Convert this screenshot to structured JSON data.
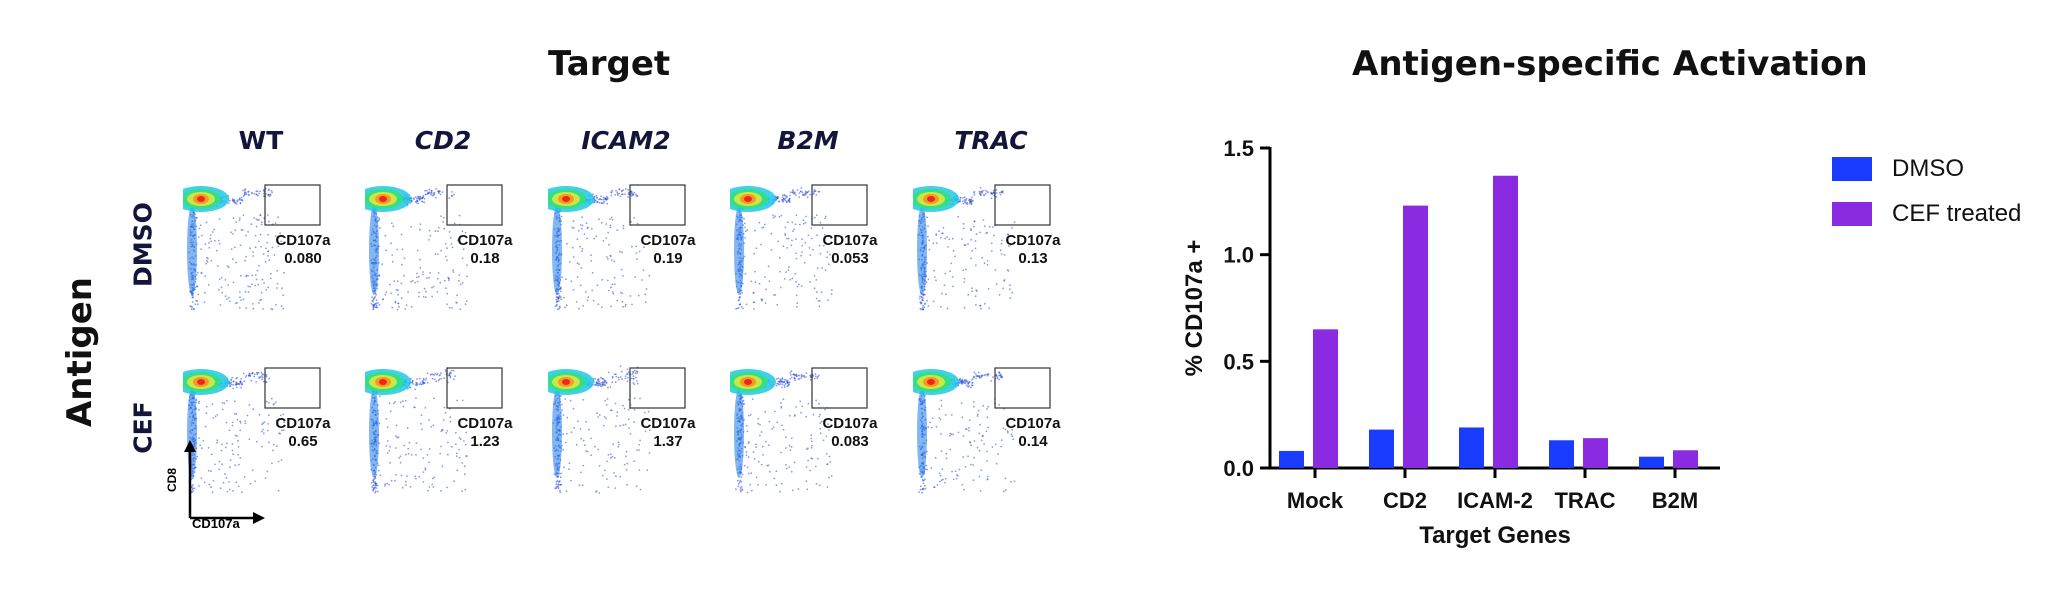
{
  "left_figure": {
    "title": "Target",
    "side_label": "Antigen",
    "columns": [
      {
        "label": "WT",
        "italic": false
      },
      {
        "label": "CD2",
        "italic": true
      },
      {
        "label": "ICAM2",
        "italic": true
      },
      {
        "label": "B2M",
        "italic": true
      },
      {
        "label": "TRAC",
        "italic": true
      }
    ],
    "rows": [
      {
        "label": "DMSO",
        "gate_name": "CD107a",
        "values": [
          "0.080",
          "0.18",
          "0.19",
          "0.053",
          "0.13"
        ]
      },
      {
        "label": "CEF",
        "gate_name": "CD107a",
        "values": [
          "0.65",
          "1.23",
          "1.37",
          "0.083",
          "0.14"
        ]
      }
    ],
    "axis_y_label": "CD8",
    "axis_x_label": "CD107a"
  },
  "chart_data": {
    "type": "bar",
    "title": "Antigen-specific Activation",
    "xlabel": "Target Genes",
    "ylabel": "% CD107a +",
    "categories": [
      "Mock",
      "CD2",
      "ICAM-2",
      "TRAC",
      "B2M"
    ],
    "series": [
      {
        "name": "DMSO",
        "color": "#1a3cff",
        "values": [
          0.08,
          0.18,
          0.19,
          0.13,
          0.053
        ]
      },
      {
        "name": "CEF treated",
        "color": "#8a2be2",
        "values": [
          0.65,
          1.23,
          1.37,
          0.14,
          0.083
        ]
      }
    ],
    "ylim": [
      0,
      1.5
    ],
    "yticks": [
      "0.0",
      "0.5",
      "1.0",
      "1.5"
    ],
    "grid": false,
    "legend_position": "top-right"
  }
}
